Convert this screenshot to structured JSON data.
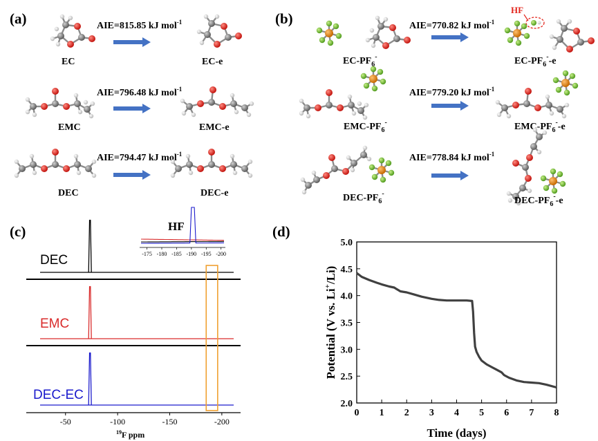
{
  "panels": {
    "a": {
      "label": "(a)",
      "rows": [
        {
          "aie_prefix": "AIE=815.85 kJ mol",
          "aie_sup": "-1",
          "mol": "EC",
          "mol_e": "EC-e"
        },
        {
          "aie_prefix": "AIE=796.48 kJ mol",
          "aie_sup": "-1",
          "mol": "EMC",
          "mol_e": "EMC-e"
        },
        {
          "aie_prefix": "AIE=794.47 kJ mol",
          "aie_sup": "-1",
          "mol": "DEC",
          "mol_e": "DEC-e"
        }
      ]
    },
    "b": {
      "label": "(b)",
      "hf": "HF",
      "rows": [
        {
          "aie_prefix": "AIE=770.82 kJ mol",
          "aie_sup": "-1",
          "mol": "EC-PF",
          "mol_e": "EC-PF",
          "sub": "6",
          "sup": "-",
          "e_suffix": "-e"
        },
        {
          "aie_prefix": "AIE=779.20 kJ mol",
          "aie_sup": "-1",
          "mol": "EMC-PF",
          "mol_e": "EMC-PF",
          "sub": "6",
          "sup": "-",
          "e_suffix": "-e"
        },
        {
          "aie_prefix": "AIE=778.84 kJ mol",
          "aie_sup": "-1",
          "mol": "DEC-PF",
          "mol_e": "DEC-PF",
          "sub": "6",
          "sup": "-",
          "e_suffix": "-e"
        }
      ]
    },
    "c": {
      "label": "(c)",
      "inset_label": "HF",
      "xlabel_sup": "19",
      "xlabel": "F ppm"
    },
    "d": {
      "label": "(d)"
    }
  },
  "colors": {
    "arrow": "#4472c4",
    "carbon": "#7a7a7a",
    "oxygen": "#e3261d",
    "hydrogen": "#ececec",
    "phosphorus": "#e8840b",
    "fluorine": "#7ac943",
    "hf_label": "#e3261d",
    "dec": "#000000",
    "emc": "#d92b2b",
    "dec_ec": "#1a1acc",
    "highlight_box": "#f0a030",
    "curve": "#404040"
  },
  "chart_data": [
    {
      "type": "line",
      "panel": "c",
      "xlim": [
        -15,
        -218
      ],
      "ticks": [
        -50,
        -100,
        -150,
        -200
      ],
      "tick_labels": [
        "-50",
        "-100",
        "-150",
        "-200"
      ],
      "series": [
        {
          "name": "DEC",
          "peaks": [
            {
              "x": -73.5,
              "height": 1.0
            }
          ]
        },
        {
          "name": "EMC",
          "peaks": [
            {
              "x": -73.5,
              "height": 1.0
            }
          ]
        },
        {
          "name": "DEC-EC",
          "peaks": [
            {
              "x": -73.5,
              "height": 1.0
            }
          ]
        }
      ],
      "highlight_range": [
        -185,
        -196
      ],
      "inset": {
        "xlim": [
          -173,
          -201
        ],
        "ticks": [
          -175,
          -180,
          -185,
          -190,
          -195,
          -200
        ],
        "tick_labels": [
          "-175",
          "-180",
          "-185",
          "-190",
          "-195",
          "-200"
        ],
        "label": "HF",
        "peak_x": -190.5
      }
    },
    {
      "type": "line",
      "panel": "d",
      "xlabel": "Time (days)",
      "ylabel": "Potential (V vs. Li+/Li)",
      "xlim": [
        0,
        8
      ],
      "ylim": [
        2.0,
        5.0
      ],
      "x_ticks": [
        0,
        1,
        2,
        3,
        4,
        5,
        6,
        7,
        8
      ],
      "y_ticks": [
        2.0,
        2.5,
        3.0,
        3.5,
        4.0,
        4.5,
        5.0
      ],
      "x_tick_labels": [
        "0",
        "1",
        "2",
        "3",
        "4",
        "5",
        "6",
        "7",
        "8"
      ],
      "y_tick_labels": [
        "2.0",
        "2.5",
        "3.0",
        "3.5",
        "4.0",
        "4.5",
        "5.0"
      ],
      "x": [
        0,
        0.2,
        0.5,
        0.8,
        1.0,
        1.3,
        1.5,
        1.6,
        1.75,
        2.0,
        2.3,
        2.6,
        3.0,
        3.3,
        3.6,
        4.0,
        4.4,
        4.62,
        4.66,
        4.7,
        4.74,
        4.8,
        4.9,
        5.0,
        5.2,
        5.4,
        5.6,
        5.8,
        5.9,
        6.1,
        6.4,
        6.7,
        7.0,
        7.3,
        7.6,
        8.0
      ],
      "y": [
        4.42,
        4.35,
        4.29,
        4.24,
        4.21,
        4.17,
        4.15,
        4.12,
        4.08,
        4.06,
        4.02,
        3.98,
        3.94,
        3.92,
        3.91,
        3.91,
        3.91,
        3.9,
        3.7,
        3.3,
        3.05,
        2.95,
        2.86,
        2.79,
        2.72,
        2.67,
        2.62,
        2.57,
        2.52,
        2.47,
        2.42,
        2.39,
        2.38,
        2.37,
        2.34,
        2.29
      ]
    }
  ]
}
